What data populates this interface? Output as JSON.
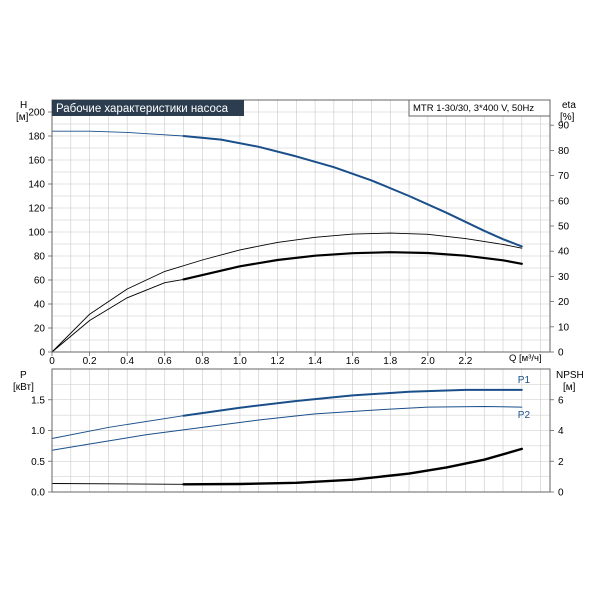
{
  "colors": {
    "blue": "#1a4f8a",
    "black": "#000000",
    "grid": "#c8c8c8",
    "frame": "#666666",
    "title_bg": "#2b3d4f",
    "title_fg": "#ffffff"
  },
  "chart_data": [
    {
      "type": "line",
      "title": "Рабочие характеристики насоса",
      "subtitle": "MTR 1-30/30, 3*400 V, 50Hz",
      "xlabel": "Q [м³/ч]",
      "ylabel": "H",
      "ylabel_unit": "[м]",
      "y2label": "eta",
      "y2label_unit": "[%]",
      "x_ticks": [
        "0",
        "0.2",
        "0.4",
        "0.6",
        "0.8",
        "1.0",
        "1.2",
        "1.4",
        "1.6",
        "1.8",
        "2.0",
        "2.2"
      ],
      "y_ticks": [
        "0",
        "20",
        "40",
        "60",
        "80",
        "100",
        "120",
        "140",
        "160",
        "180",
        "200"
      ],
      "y2_ticks": [
        "0",
        "10",
        "20",
        "30",
        "40",
        "50",
        "60",
        "70",
        "80",
        "90"
      ],
      "xlim": [
        0,
        2.65
      ],
      "ylim": [
        0,
        210
      ],
      "y2lim": [
        0,
        100
      ],
      "grid": true,
      "series": [
        {
          "role": "head-thin",
          "axis": "left",
          "x": [
            0,
            0.2,
            0.4,
            0.6,
            0.7
          ],
          "y": [
            184,
            184,
            183,
            181,
            180
          ]
        },
        {
          "role": "head",
          "axis": "left",
          "x": [
            0.7,
            0.9,
            1.1,
            1.3,
            1.5,
            1.7,
            1.9,
            2.1,
            2.3,
            2.4,
            2.5
          ],
          "y": [
            180,
            177,
            171,
            163,
            154,
            143,
            130,
            116,
            101,
            94,
            88
          ]
        },
        {
          "role": "eta-thin-upper",
          "axis": "right",
          "x": [
            0,
            0.2,
            0.4,
            0.6,
            0.8,
            1.0,
            1.2,
            1.4,
            1.6,
            1.8,
            2.0,
            2.2,
            2.4,
            2.5
          ],
          "y": [
            0,
            15,
            25,
            32,
            36.5,
            40.5,
            43.5,
            45.5,
            46.8,
            47.2,
            46.7,
            45,
            42.7,
            41.2
          ]
        },
        {
          "role": "eta-thin-lower",
          "axis": "right",
          "x": [
            0,
            0.2,
            0.4,
            0.6,
            0.7
          ],
          "y": [
            0,
            12.5,
            21.5,
            27.5,
            28.8
          ]
        },
        {
          "role": "eta",
          "axis": "right",
          "x": [
            0.7,
            0.8,
            1.0,
            1.2,
            1.4,
            1.6,
            1.8,
            2.0,
            2.2,
            2.4,
            2.5
          ],
          "y": [
            28.8,
            30.5,
            34,
            36.5,
            38.2,
            39.2,
            39.6,
            39.3,
            38.2,
            36.4,
            35
          ]
        }
      ]
    },
    {
      "type": "line",
      "ylabel": "P",
      "ylabel_unit": "[кВт]",
      "y2label": "NPSH",
      "y2label_unit": "[м]",
      "y_ticks": [
        "0.0",
        "0.5",
        "1.0",
        "1.5"
      ],
      "y2_ticks": [
        "0",
        "2",
        "4",
        "6"
      ],
      "ylim": [
        0,
        2.0
      ],
      "y2lim": [
        0,
        8
      ],
      "xlim": [
        0,
        2.65
      ],
      "grid": true,
      "series": [
        {
          "name": "P1",
          "axis": "left",
          "thin_x": [
            0,
            0.3,
            0.7
          ],
          "thin_y": [
            0.87,
            1.05,
            1.24
          ],
          "x": [
            0.7,
            1.0,
            1.3,
            1.6,
            1.9,
            2.2,
            2.5
          ],
          "y": [
            1.24,
            1.37,
            1.48,
            1.57,
            1.63,
            1.66,
            1.66
          ]
        },
        {
          "name": "P2",
          "axis": "left",
          "x": [
            0,
            0.2,
            0.5,
            0.8,
            1.1,
            1.4,
            1.7,
            2.0,
            2.3,
            2.5
          ],
          "y": [
            0.68,
            0.78,
            0.93,
            1.05,
            1.17,
            1.27,
            1.33,
            1.38,
            1.39,
            1.38
          ]
        },
        {
          "role": "npsh",
          "axis": "right",
          "thin_x": [
            0,
            0.7
          ],
          "thin_y": [
            0.55,
            0.5
          ],
          "x": [
            0.7,
            1.0,
            1.3,
            1.6,
            1.9,
            2.1,
            2.3,
            2.5
          ],
          "y": [
            0.5,
            0.52,
            0.6,
            0.8,
            1.2,
            1.6,
            2.1,
            2.8
          ]
        }
      ]
    }
  ]
}
